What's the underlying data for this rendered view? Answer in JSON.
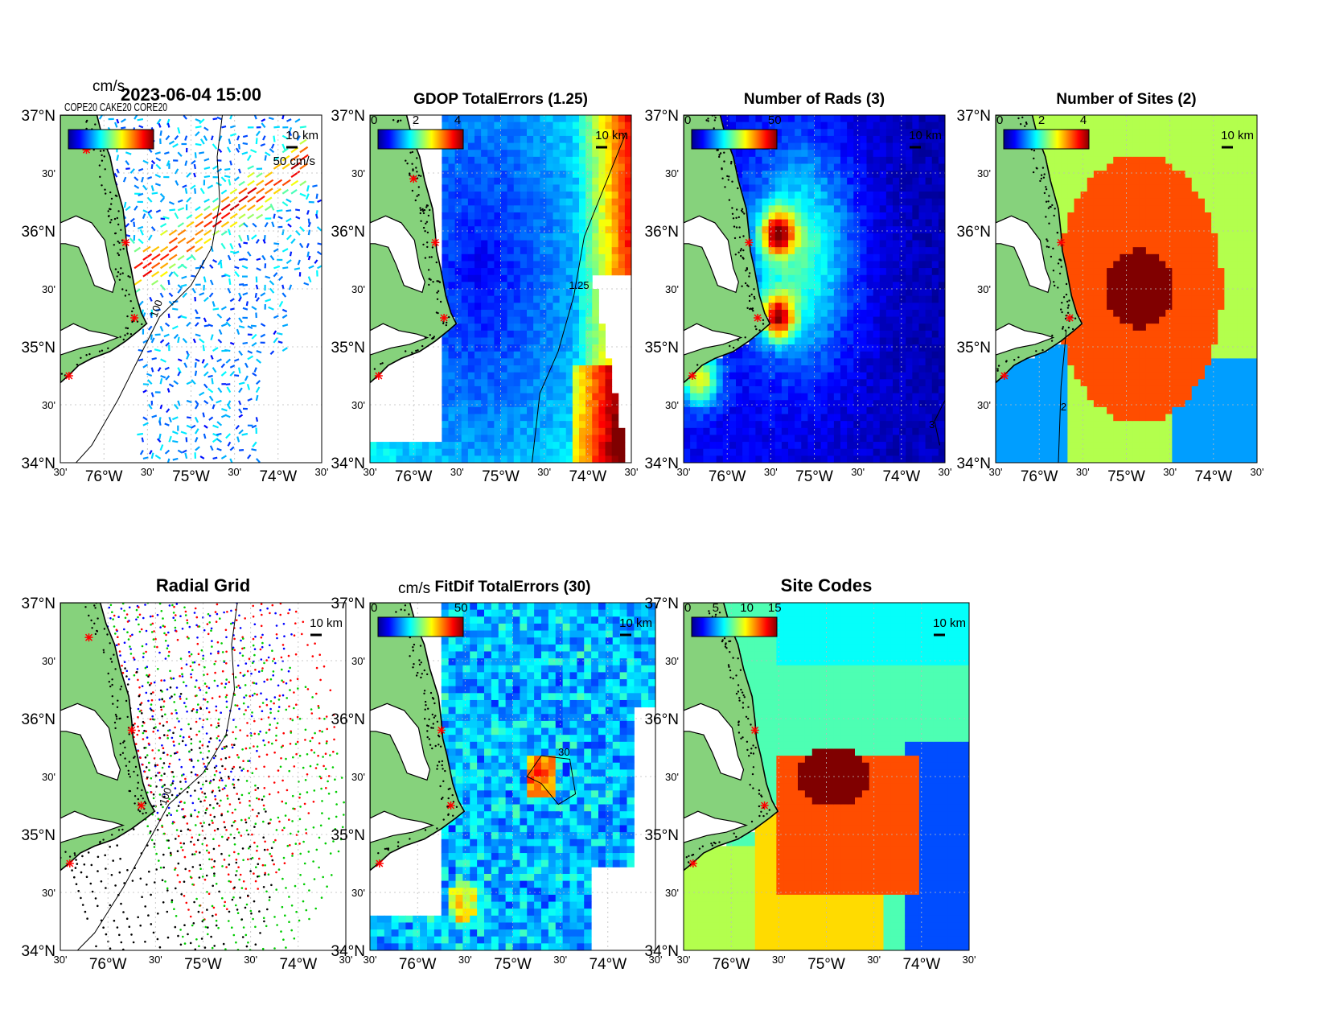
{
  "figure_timestamp": "2023-06-04 15:00",
  "colors": {
    "land": "#86d27c",
    "coast": "#000000",
    "site_marker": "#ff0000",
    "colormap": [
      "#00008f",
      "#0000ff",
      "#0080ff",
      "#00ffff",
      "#80ff80",
      "#ffff00",
      "#ff8000",
      "#ff0000",
      "#800000"
    ]
  },
  "axes": {
    "lat_major": [
      "37°N",
      "36°N",
      "35°N",
      "34°N"
    ],
    "lat_minor": "30'",
    "lon_major": [
      "76°W",
      "75°W",
      "74°W"
    ],
    "lon_minor": "30'",
    "lat_range": [
      34,
      37
    ],
    "lon_range": [
      -76.5,
      -73.5
    ],
    "scale_bar": "10 km"
  },
  "panels": [
    {
      "id": "total-currents",
      "title": "",
      "units": "cm/s",
      "colorbar_ticks": [],
      "colorbar_overlay": "COPE20 CAKE20 CORE20",
      "reference_vector": "50 cm/s",
      "field": "vectors",
      "bathymetry_contour": "100",
      "sites": [
        [
          -76.2,
          36.7
        ],
        [
          -75.75,
          35.9
        ],
        [
          -75.65,
          35.25
        ],
        [
          -76.4,
          34.75
        ]
      ]
    },
    {
      "id": "gdop-errors",
      "title": "GDOP TotalErrors (1.25)",
      "units": "",
      "colorbar_ticks": [
        "0",
        "2",
        "4"
      ],
      "field": "gdop",
      "contour_label": "1.25",
      "sites": [
        [
          -76.0,
          36.45
        ],
        [
          -75.75,
          35.9
        ],
        [
          -75.65,
          35.25
        ],
        [
          -76.4,
          34.75
        ]
      ]
    },
    {
      "id": "number-of-rads",
      "title": "Number of Rads (3)",
      "units": "",
      "colorbar_ticks": [
        "0",
        "50"
      ],
      "field": "rads",
      "contour_label": "3",
      "sites": [
        [
          -75.75,
          35.9
        ],
        [
          -75.65,
          35.25
        ],
        [
          -76.4,
          34.75
        ]
      ]
    },
    {
      "id": "number-of-sites",
      "title": "Number of Sites (2)",
      "units": "",
      "colorbar_ticks": [
        "0",
        "2",
        "4"
      ],
      "field": "sites",
      "contour_label": "2",
      "sites": [
        [
          -75.75,
          35.9
        ],
        [
          -75.65,
          35.25
        ],
        [
          -76.4,
          34.75
        ]
      ]
    },
    {
      "id": "radial-grid",
      "title": "Radial Grid",
      "units": "",
      "colorbar_ticks": [],
      "field": "radial",
      "bathymetry_contour": "100",
      "sites": [
        [
          -76.2,
          36.7
        ],
        [
          -75.75,
          35.9
        ],
        [
          -75.65,
          35.25
        ],
        [
          -76.4,
          34.75
        ]
      ]
    },
    {
      "id": "fitdif-errors",
      "title": "FitDif TotalErrors (30)",
      "units": "cm/s",
      "colorbar_ticks": [
        "0",
        "50"
      ],
      "field": "fitdif",
      "contour_label": "30",
      "sites": [
        [
          -75.75,
          35.9
        ],
        [
          -75.65,
          35.25
        ],
        [
          -76.4,
          34.75
        ]
      ]
    },
    {
      "id": "site-codes",
      "title": "Site Codes",
      "units": "",
      "colorbar_ticks": [
        "0",
        "5",
        "10",
        "15"
      ],
      "field": "codes",
      "sites": [
        [
          -75.75,
          35.9
        ],
        [
          -75.65,
          35.25
        ],
        [
          -76.4,
          34.75
        ]
      ]
    }
  ]
}
